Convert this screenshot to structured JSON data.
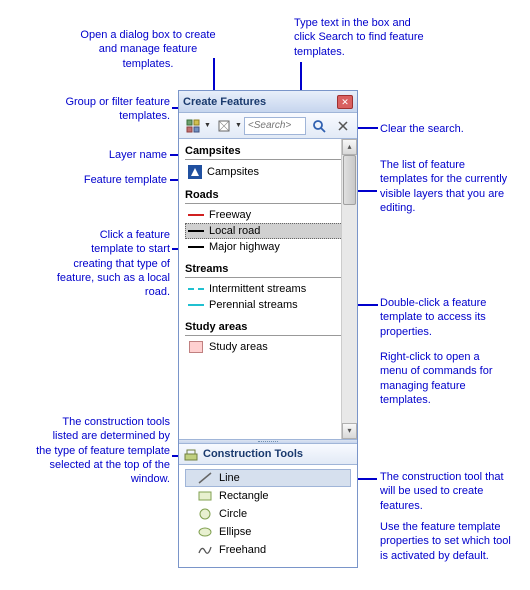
{
  "colors": {
    "callout": "#0000cc",
    "titlebar_bg_top": "#e8effa",
    "titlebar_bg_bottom": "#c6d5ee",
    "border": "#7a95c9"
  },
  "window": {
    "title": "Create Features",
    "search_placeholder": "<Search>",
    "construction_title": "Construction Tools"
  },
  "callouts": {
    "open_dialog": "Open a dialog box to create and manage feature templates.",
    "type_search": "Type text in the box and click Search to find feature templates.",
    "group_filter": "Group or filter feature templates.",
    "clear_search": "Clear the search.",
    "layer_name": "Layer name",
    "feature_template": "Feature template",
    "list_desc": "The list of feature templates for the currently visible layers that you are editing.",
    "click_template": "Click a feature template to start creating that type of feature, such as a local road.",
    "double_click": "Double-click a feature template to access its properties.",
    "right_click": "Right-click to open a menu of commands for managing feature templates.",
    "construction_desc": "The construction tools listed are determined by the type of feature template selected at the top of the window.",
    "tool_selected": "The construction tool that will be used to create features.",
    "tool_default": "Use the feature template properties to set which tool is activated by default."
  },
  "layers": [
    {
      "name": "Campsites",
      "templates": [
        {
          "label": "Campsites",
          "symbol": "camp"
        }
      ]
    },
    {
      "name": "Roads",
      "templates": [
        {
          "label": "Freeway",
          "symbol": "line-red"
        },
        {
          "label": "Local road",
          "symbol": "line-black",
          "selected": true
        },
        {
          "label": "Major highway",
          "symbol": "line-black"
        }
      ]
    },
    {
      "name": "Streams",
      "templates": [
        {
          "label": "Intermittent streams",
          "symbol": "line-cyan-dash"
        },
        {
          "label": "Perennial streams",
          "symbol": "line-cyan"
        }
      ]
    },
    {
      "name": "Study areas",
      "templates": [
        {
          "label": "Study areas",
          "symbol": "poly-pink"
        }
      ]
    }
  ],
  "tools": [
    {
      "label": "Line",
      "icon": "line",
      "selected": true
    },
    {
      "label": "Rectangle",
      "icon": "rect"
    },
    {
      "label": "Circle",
      "icon": "circle"
    },
    {
      "label": "Ellipse",
      "icon": "ellipse"
    },
    {
      "label": "Freehand",
      "icon": "freehand"
    }
  ]
}
